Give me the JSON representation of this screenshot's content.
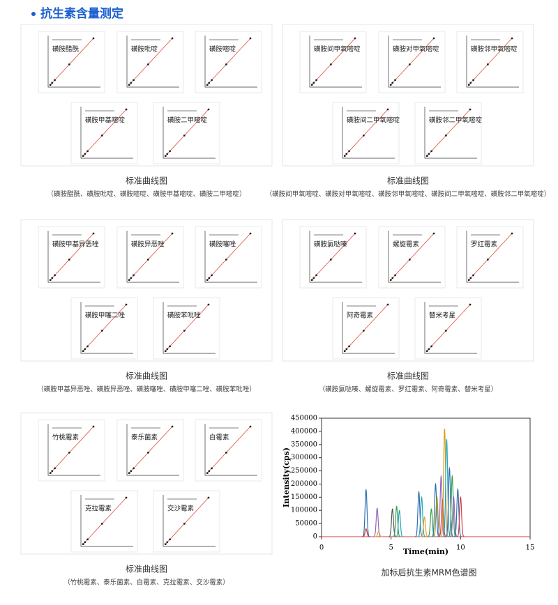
{
  "header": {
    "title": "抗生素含量测定"
  },
  "panels": [
    {
      "compounds": [
        "磺胺醋酰",
        "磺胺吡啶",
        "磺胺嘧啶",
        "磺胺甲基嘧啶",
        "磺胺二甲嘧啶"
      ],
      "caption": "标准曲线图",
      "subcaption": "（磺胺醋酰、磺胺吡啶、磺胺嘧啶、磺胺甲基嘧啶、磺胺二甲嘧啶）"
    },
    {
      "compounds": [
        "磺胺间甲氧嘧啶",
        "磺胺对甲氧嘧啶",
        "磺胺邻甲氧嘧啶",
        "磺胺间二甲氧嘧啶",
        "磺胺邻二甲氧嘧啶"
      ],
      "caption": "标准曲线图",
      "subcaption": "（磺胺间甲氧嘧啶、磺胺对甲氧嘧啶、磺胺邻甲氧嘧啶、磺胺间二甲氧嘧啶、磺胺邻二甲氧嘧啶）"
    },
    {
      "compounds": [
        "磺胺甲基异恶唑",
        "磺胺异恶唑",
        "磺胺噻唑",
        "磺胺甲噻二唑",
        "磺胺苯吡唑"
      ],
      "caption": "标准曲线图",
      "subcaption": "（磺胺甲基异恶唑、磺胺异恶唑、磺胺噻唑、磺胺甲噻二唑、磺胺苯吡唑）"
    },
    {
      "compounds": [
        "磺胺氯哒嗪",
        "螺旋霉素",
        "罗红霉素",
        "阿奇霉素",
        "替米考星"
      ],
      "caption": "标准曲线图",
      "subcaption": "（磺胺氯哒嗪、螺旋霉素、罗红霉素、阿奇霉素、替米考星）"
    },
    {
      "compounds": [
        "竹桃霉素",
        "泰乐菌素",
        "白霉素",
        "克拉霉素",
        "交沙霉素"
      ],
      "caption": "标准曲线图",
      "subcaption": "（竹桃霉素、泰乐菌素、白霉素、克拉霉素、交沙霉素）"
    }
  ],
  "chromatogram": {
    "type": "line",
    "caption": "加标后抗生素MRM色谱图",
    "x_label": "Time(min)",
    "y_label": "Intensity(cps)",
    "xlim": [
      0,
      15
    ],
    "xticks": [
      0,
      5,
      10,
      15
    ],
    "ylim": [
      0,
      450000
    ],
    "yticks": [
      0,
      50000,
      100000,
      150000,
      200000,
      250000,
      300000,
      350000,
      400000,
      450000
    ],
    "peaks": [
      {
        "time": 3.2,
        "height": 178000,
        "color": "#2f6fb5"
      },
      {
        "time": 3.2,
        "height": 30000,
        "color": "#d04040"
      },
      {
        "time": 4.0,
        "height": 108000,
        "color": "#9467bd"
      },
      {
        "time": 4.1,
        "height": 20000,
        "color": "#e8a030"
      },
      {
        "time": 5.1,
        "height": 105000,
        "color": "#555555"
      },
      {
        "time": 5.4,
        "height": 115000,
        "color": "#3aa04a"
      },
      {
        "time": 5.6,
        "height": 100000,
        "color": "#2aa8b8"
      },
      {
        "time": 7.0,
        "height": 170000,
        "color": "#2f6fb5"
      },
      {
        "time": 7.2,
        "height": 150000,
        "color": "#2aa8b8"
      },
      {
        "time": 7.4,
        "height": 75000,
        "color": "#e8a030"
      },
      {
        "time": 7.9,
        "height": 105000,
        "color": "#3aa04a"
      },
      {
        "time": 8.2,
        "height": 200000,
        "color": "#2f6fb5"
      },
      {
        "time": 8.3,
        "height": 150000,
        "color": "#9a9a20"
      },
      {
        "time": 8.6,
        "height": 230000,
        "color": "#9467bd"
      },
      {
        "time": 8.7,
        "height": 140000,
        "color": "#d04040"
      },
      {
        "time": 8.85,
        "height": 410000,
        "color": "#d4a017"
      },
      {
        "time": 9.0,
        "height": 370000,
        "color": "#2aa8b8"
      },
      {
        "time": 9.2,
        "height": 260000,
        "color": "#2f6fb5"
      },
      {
        "time": 9.4,
        "height": 230000,
        "color": "#3aa04a"
      },
      {
        "time": 9.5,
        "height": 150000,
        "color": "#9467bd"
      },
      {
        "time": 9.8,
        "height": 180000,
        "color": "#2f6fb5"
      },
      {
        "time": 10.0,
        "height": 150000,
        "color": "#d04040"
      }
    ]
  }
}
